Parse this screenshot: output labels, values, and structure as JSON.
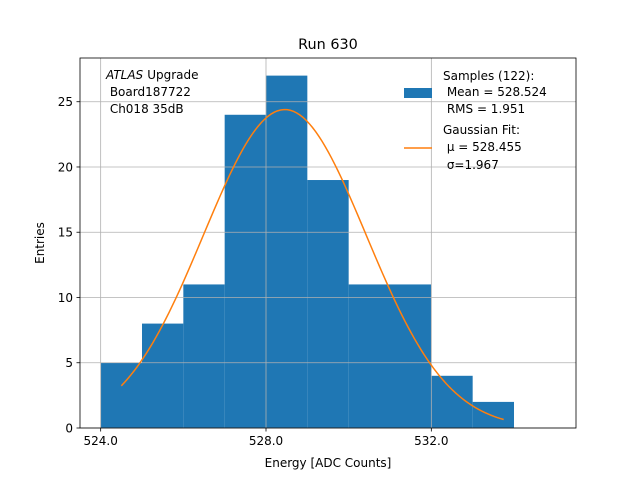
{
  "chart_data": {
    "type": "bar",
    "title": "Run 630",
    "xlabel": "Energy [ADC Counts]",
    "ylabel": "Entries",
    "xlim": [
      523.5,
      535.5
    ],
    "ylim": [
      0,
      28.35
    ],
    "grid": true,
    "x_ticks": [
      524.0,
      528.0,
      532.0
    ],
    "x_tick_labels": [
      "524.0",
      "528.0",
      "532.0"
    ],
    "y_ticks": [
      0,
      5,
      10,
      15,
      20,
      25
    ],
    "y_tick_labels": [
      "0",
      "5",
      "10",
      "15",
      "20",
      "25"
    ],
    "bin_edges": [
      524,
      525,
      526,
      527,
      528,
      529,
      530,
      531,
      532,
      533,
      534
    ],
    "values": [
      5,
      8,
      11,
      24,
      27,
      19,
      11,
      11,
      4,
      2
    ],
    "bar_color": "#1f77b4",
    "fit_color": "#ff7f0e",
    "fit": {
      "mu": 528.455,
      "sigma": 1.967,
      "amplitude": 24.4,
      "x_range": [
        524.5,
        533.75
      ]
    },
    "annotation": {
      "italic": "ATLAS",
      "text": "Upgrade",
      "lines": [
        " Board187722",
        " Ch018 35dB"
      ]
    },
    "legend": {
      "placement": "top-right",
      "samples_lines": [
        "Samples (122):",
        " Mean = 528.524",
        " RMS = 1.951"
      ],
      "fit_lines": [
        "Gaussian Fit:",
        " μ = 528.455",
        " σ=1.967"
      ]
    }
  }
}
